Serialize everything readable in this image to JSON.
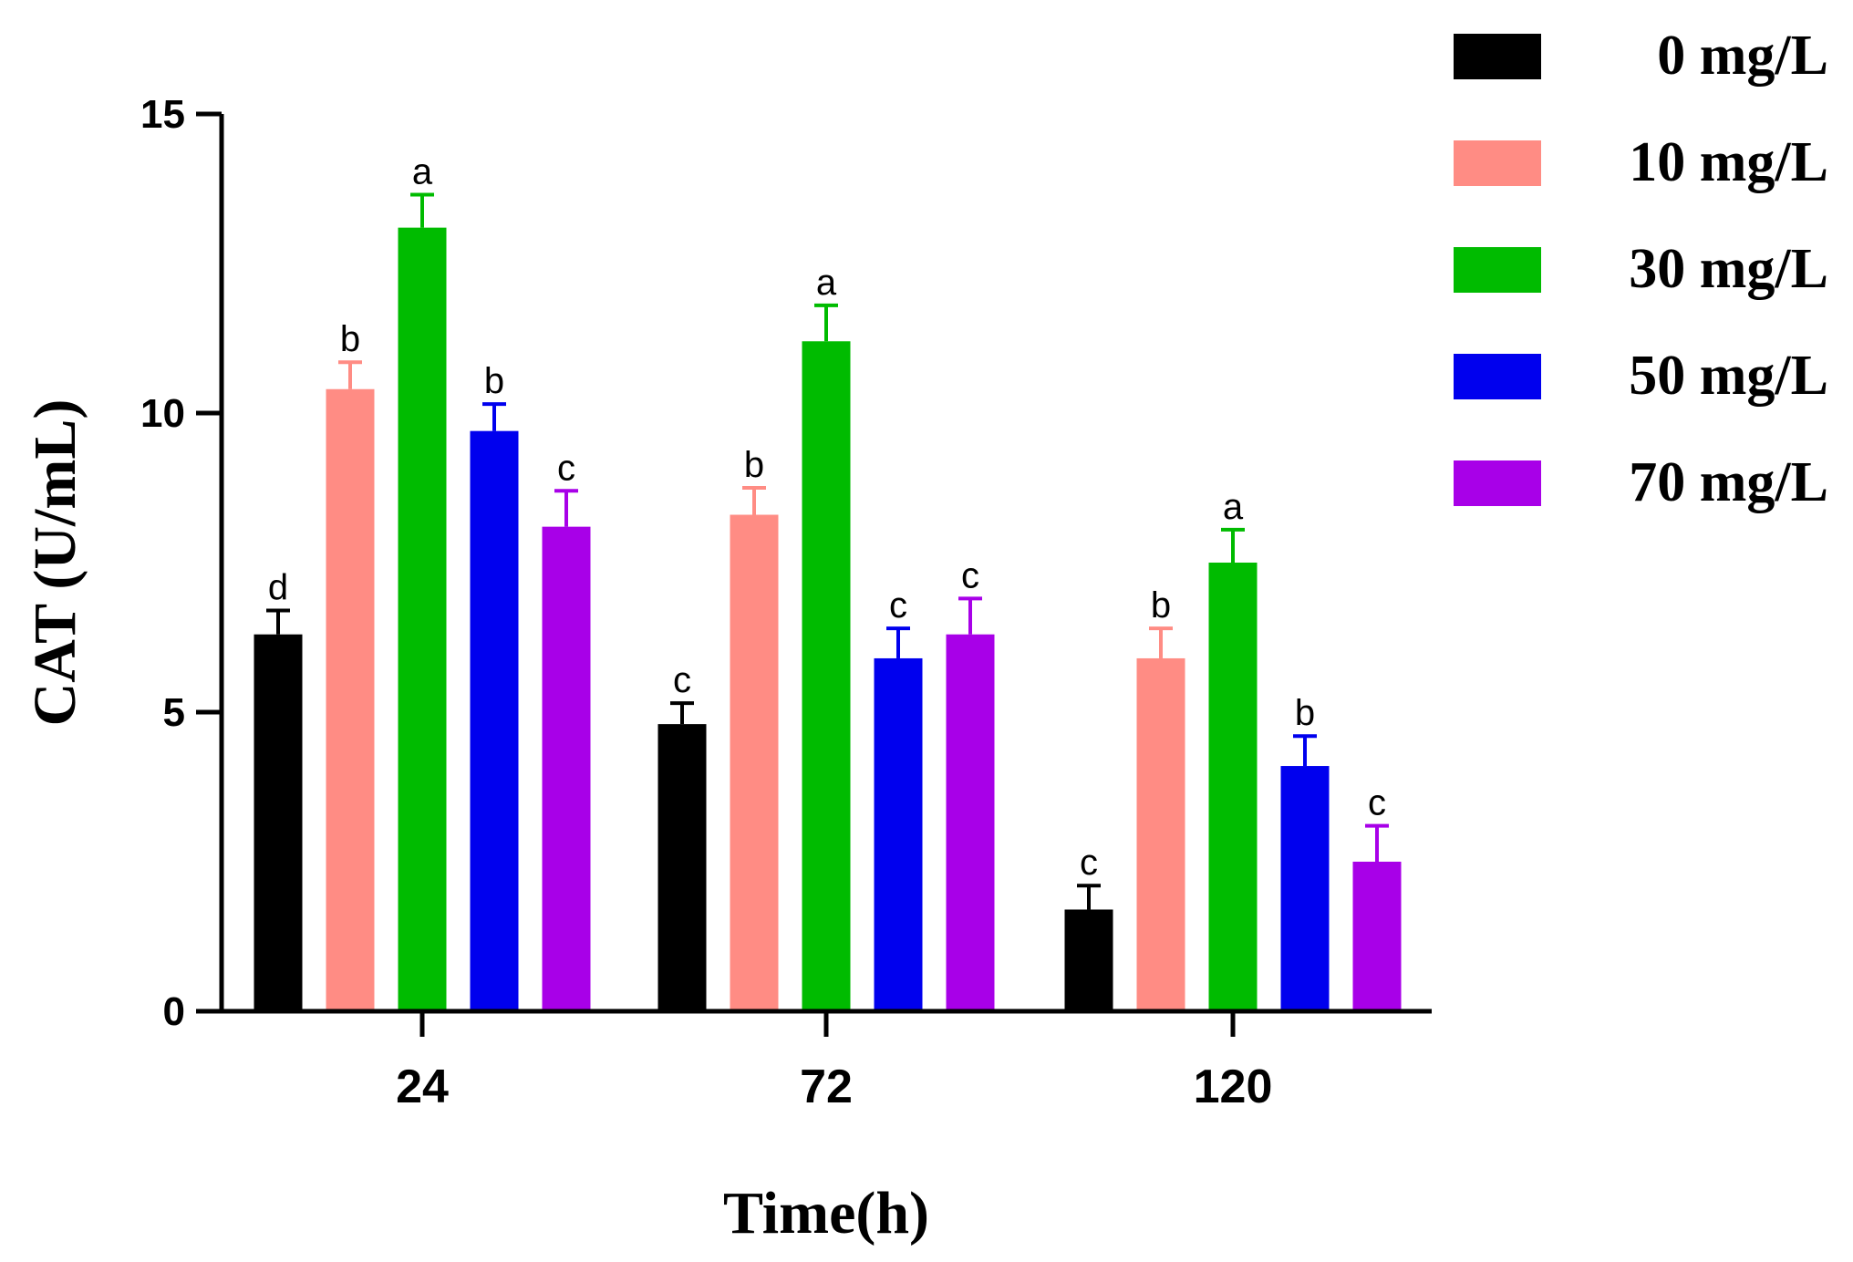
{
  "chart_data": {
    "type": "bar",
    "title": "",
    "xlabel": "Time(h)",
    "ylabel": "CAT (U/mL)",
    "ylim": [
      0,
      15
    ],
    "yticks": [
      0,
      5,
      10,
      15
    ],
    "categories": [
      "24",
      "72",
      "120"
    ],
    "legend_position": "top-right",
    "grid": false,
    "series": [
      {
        "name": "0 mg/L",
        "color": "#000000",
        "values": [
          6.3,
          4.8,
          1.7
        ],
        "errors": [
          0.4,
          0.35,
          0.4
        ],
        "labels": [
          "d",
          "c",
          "c"
        ]
      },
      {
        "name": "10 mg/L",
        "color": "#FF8C84",
        "values": [
          10.4,
          8.3,
          5.9
        ],
        "errors": [
          0.45,
          0.45,
          0.5
        ],
        "labels": [
          "b",
          "b",
          "b"
        ]
      },
      {
        "name": "30 mg/L",
        "color": "#00BB00",
        "values": [
          13.1,
          11.2,
          7.5
        ],
        "errors": [
          0.55,
          0.6,
          0.55
        ],
        "labels": [
          "a",
          "a",
          "a"
        ]
      },
      {
        "name": "50 mg/L",
        "color": "#0000EE",
        "values": [
          9.7,
          5.9,
          4.1
        ],
        "errors": [
          0.45,
          0.5,
          0.5
        ],
        "labels": [
          "b",
          "c",
          "b"
        ]
      },
      {
        "name": "70 mg/L",
        "color": "#A800E8",
        "values": [
          8.1,
          6.3,
          2.5
        ],
        "errors": [
          0.6,
          0.6,
          0.6
        ],
        "labels": [
          "c",
          "c",
          "c"
        ]
      }
    ]
  }
}
